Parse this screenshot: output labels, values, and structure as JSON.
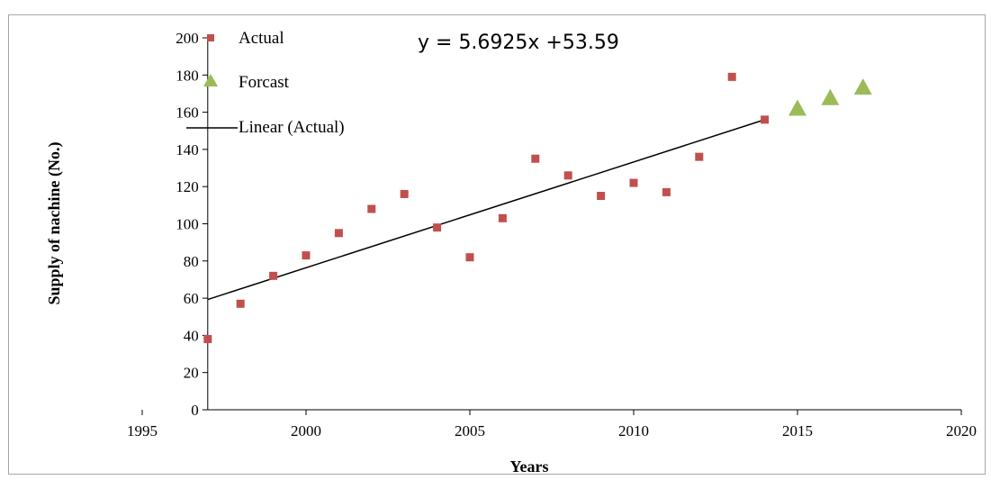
{
  "chart_data": {
    "type": "scatter",
    "title": "",
    "xlabel": "Years",
    "ylabel": "Supply of nachine (No.)",
    "xlim": [
      1995,
      2020
    ],
    "ylim": [
      0,
      200
    ],
    "x_ticks": [
      1995,
      2000,
      2005,
      2010,
      2015,
      2020
    ],
    "y_ticks": [
      0,
      20,
      40,
      60,
      80,
      100,
      120,
      140,
      160,
      180,
      200
    ],
    "grid": false,
    "legend_position": "top-left",
    "series": [
      {
        "name": "Actual",
        "marker": "square",
        "color": "#c0504d",
        "x": [
          1997,
          1998,
          1999,
          2000,
          2001,
          2002,
          2003,
          2004,
          2005,
          2006,
          2007,
          2008,
          2009,
          2010,
          2011,
          2012,
          2013,
          2014
        ],
        "y": [
          38,
          57,
          72,
          83,
          95,
          108,
          116,
          98,
          82,
          103,
          135,
          126,
          115,
          122,
          117,
          136,
          179,
          156
        ]
      },
      {
        "name": "Forcast",
        "marker": "triangle",
        "color": "#9bbb59",
        "x": [
          2015,
          2016,
          2017
        ],
        "y": [
          161.5,
          167.2,
          172.9
        ]
      },
      {
        "name": "Linear (Actual)",
        "marker": "line",
        "color": "#000000",
        "x": [
          1997,
          2014
        ],
        "y": [
          59.3,
          156.0
        ]
      }
    ],
    "annotations": [
      {
        "text": "y = 5.6925x +53.59"
      }
    ]
  }
}
